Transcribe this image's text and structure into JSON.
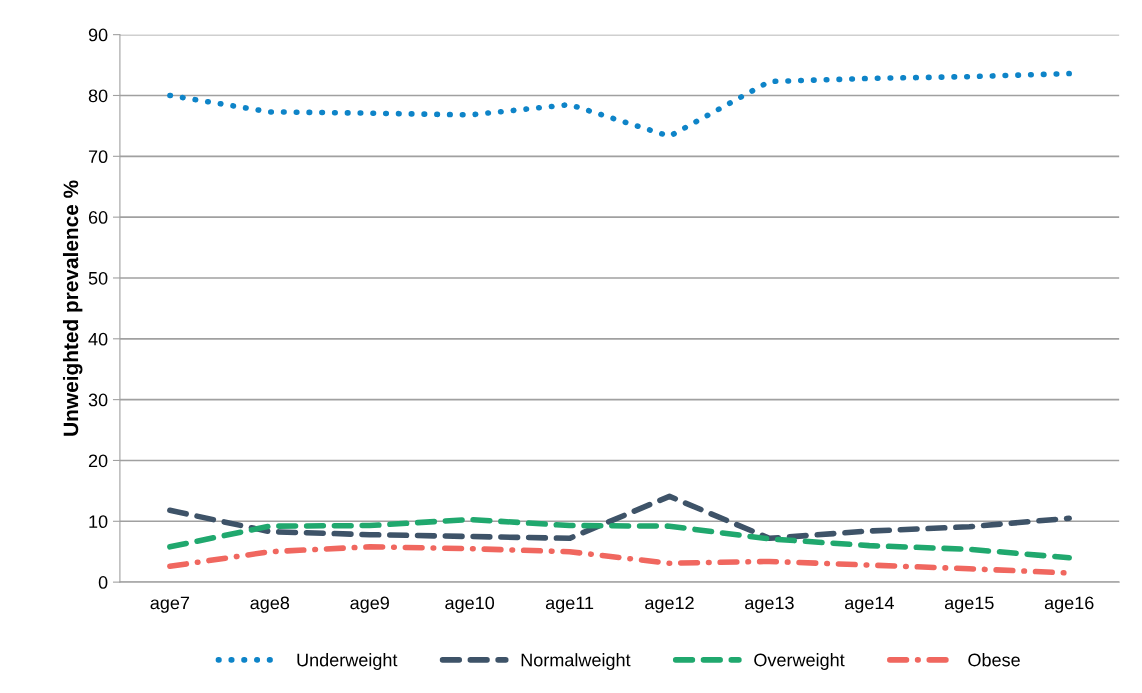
{
  "chart_data": {
    "type": "line",
    "ylabel": "Unweighted prevalence %",
    "categories": [
      "age7",
      "age8",
      "age9",
      "age10",
      "age11",
      "age12",
      "age13",
      "age14",
      "age15",
      "age16"
    ],
    "series": [
      {
        "name": "Underweight",
        "color": "#0e84c8",
        "line_style": "dotted",
        "values": [
          80,
          77.3,
          77.1,
          76.8,
          78.5,
          73.3,
          82.3,
          82.8,
          83.1,
          83.6
        ]
      },
      {
        "name": "Normalweight",
        "color": "#3e5368",
        "line_style": "dashed",
        "values": [
          11.8,
          8.3,
          7.8,
          7.5,
          7.2,
          14.1,
          7.2,
          8.4,
          9.1,
          10.5
        ]
      },
      {
        "name": "Overweight",
        "color": "#20a86e",
        "line_style": "dashed",
        "values": [
          5.8,
          9.2,
          9.3,
          10.3,
          9.3,
          9.2,
          7.1,
          6.0,
          5.4,
          4.0
        ]
      },
      {
        "name": "Obese",
        "color": "#f0675f",
        "line_style": "dashdot",
        "values": [
          2.6,
          5.0,
          5.8,
          5.5,
          5.0,
          3.1,
          3.4,
          2.8,
          2.2,
          1.5
        ]
      }
    ],
    "ylim": [
      0,
      90
    ],
    "yticks": [
      0,
      10,
      20,
      30,
      40,
      50,
      60,
      70,
      80,
      90
    ],
    "grid": "y",
    "legend": "bottom",
    "marker": "none"
  }
}
